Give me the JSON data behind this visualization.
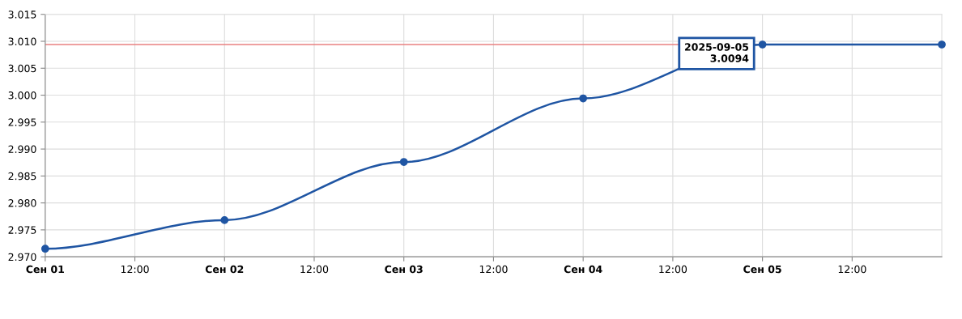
{
  "chart_data": {
    "type": "line",
    "x": [
      "2025-09-01",
      "2025-09-02",
      "2025-09-03",
      "2025-09-04",
      "2025-09-05",
      "2025-09-06"
    ],
    "series": [
      {
        "color": "#1f55a3",
        "values": [
          2.9715,
          2.9768,
          2.9876,
          2.9994,
          3.0094,
          3.0094
        ]
      }
    ],
    "xlim": [
      "2025-09-01",
      "2025-09-06"
    ],
    "xticks": [
      {
        "value": "2025-09-01",
        "label": "Сен 01"
      },
      {
        "value": "2025-09-01T12:00",
        "label": "12:00"
      },
      {
        "value": "2025-09-02",
        "label": "Сен 02"
      },
      {
        "value": "2025-09-02T12:00",
        "label": "12:00"
      },
      {
        "value": "2025-09-03",
        "label": "Сен 03"
      },
      {
        "value": "2025-09-03T12:00",
        "label": "12:00"
      },
      {
        "value": "2025-09-04",
        "label": "Сен 04"
      },
      {
        "value": "2025-09-04T12:00",
        "label": "12:00"
      },
      {
        "value": "2025-09-05",
        "label": "Сен 05"
      },
      {
        "value": "2025-09-05T12:00",
        "label": "12:00"
      }
    ],
    "ylim": [
      2.97,
      3.015
    ],
    "yticks": [
      {
        "value": 2.97,
        "label": "2.970"
      },
      {
        "value": 2.975,
        "label": "2.975"
      },
      {
        "value": 2.98,
        "label": "2.980"
      },
      {
        "value": 2.985,
        "label": "2.985"
      },
      {
        "value": 2.99,
        "label": "2.990"
      },
      {
        "value": 2.995,
        "label": "2.995"
      },
      {
        "value": 3.0,
        "label": "3.000"
      },
      {
        "value": 3.005,
        "label": "3.005"
      },
      {
        "value": 3.01,
        "label": "3.010"
      },
      {
        "value": 3.015,
        "label": "3.015"
      }
    ],
    "ref_lines": [
      {
        "axis": "y",
        "value": 3.0094,
        "color": "#e88080"
      }
    ],
    "annotations": [
      {
        "text": "2025-09-05\n3.0094",
        "x": "2025-09-05",
        "y": 3.0094
      }
    ],
    "grid": true,
    "marker": "circle",
    "line_style": "solid"
  }
}
